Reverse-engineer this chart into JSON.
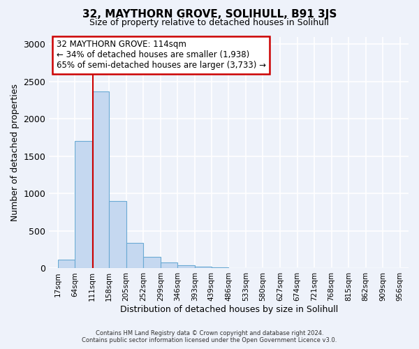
{
  "title": "32, MAYTHORN GROVE, SOLIHULL, B91 3JS",
  "subtitle": "Size of property relative to detached houses in Solihull",
  "xlabel": "Distribution of detached houses by size in Solihull",
  "ylabel": "Number of detached properties",
  "bin_edges": [
    17,
    64,
    111,
    158,
    205,
    252,
    299,
    346,
    393,
    439,
    486,
    533,
    580,
    627,
    674,
    721,
    768,
    815,
    862,
    909,
    956
  ],
  "bar_heights": [
    120,
    1700,
    2370,
    900,
    340,
    155,
    75,
    40,
    25,
    15,
    0,
    0,
    0,
    0,
    0,
    0,
    0,
    0,
    0,
    0
  ],
  "bar_color": "#c5d8f0",
  "bar_edge_color": "#6aaad4",
  "vline_x": 114,
  "vline_color": "#cc0000",
  "annotation_line1": "32 MAYTHORN GROVE: 114sqm",
  "annotation_line2": "← 34% of detached houses are smaller (1,938)",
  "annotation_line3": "65% of semi-detached houses are larger (3,733) →",
  "annotation_box_color": "#ffffff",
  "annotation_border_color": "#cc0000",
  "ylim": [
    0,
    3100
  ],
  "yticks": [
    0,
    500,
    1000,
    1500,
    2000,
    2500,
    3000
  ],
  "bg_color": "#eef2fa",
  "grid_color": "#ffffff",
  "footer_line1": "Contains HM Land Registry data © Crown copyright and database right 2024.",
  "footer_line2": "Contains public sector information licensed under the Open Government Licence v3.0."
}
